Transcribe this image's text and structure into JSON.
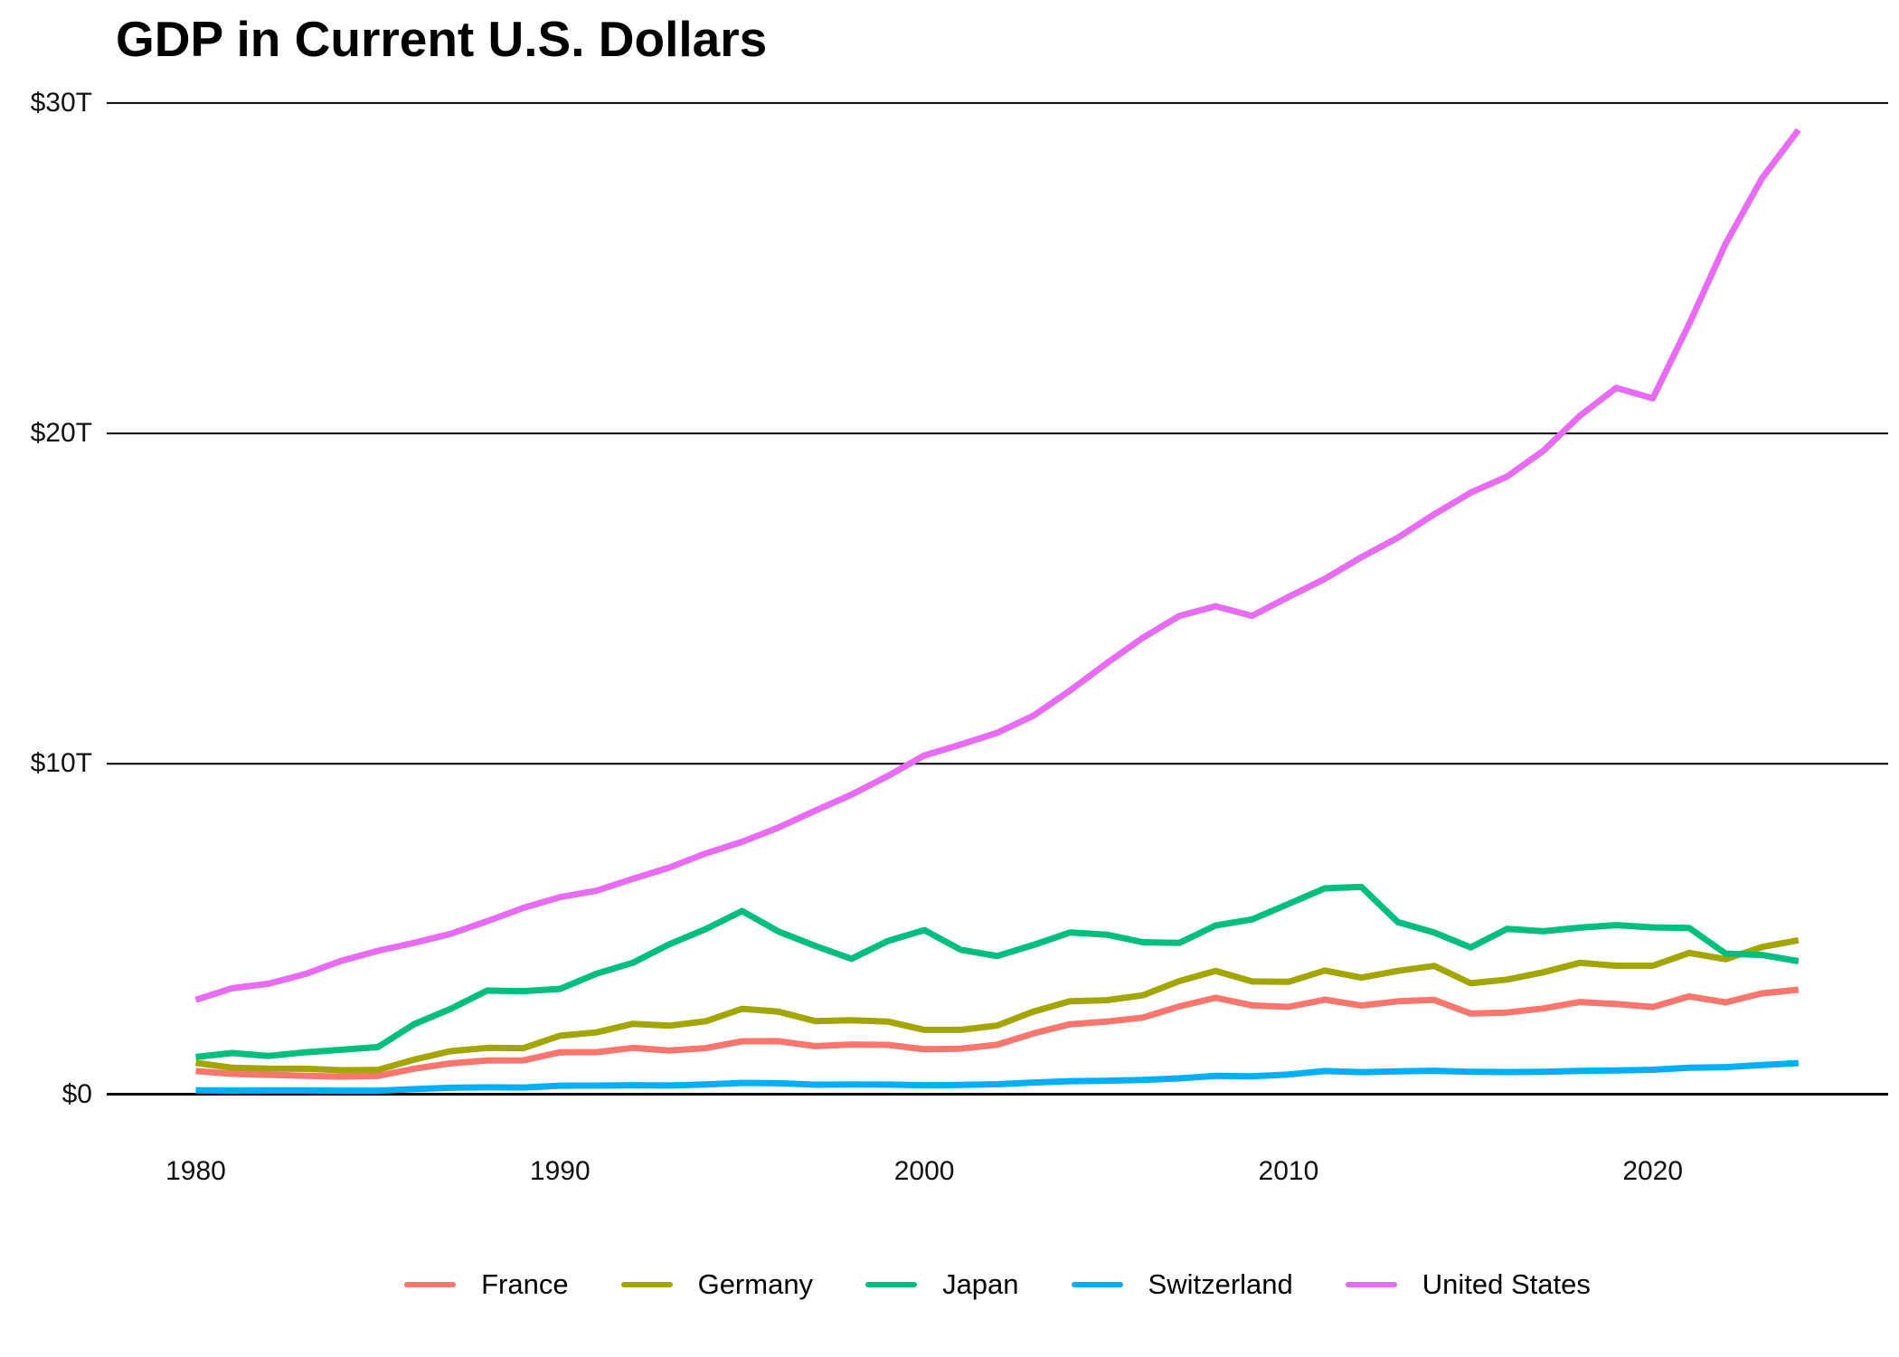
{
  "title": "GDP in Current U.S. Dollars",
  "chart_data": {
    "type": "line",
    "title": "GDP in Current U.S. Dollars",
    "xlabel": "",
    "ylabel": "",
    "units": "trillions of current U.S. dollars",
    "grid": "horizontal-only",
    "legend_position": "bottom-center",
    "xlim": [
      1980,
      2024
    ],
    "ylim": [
      0,
      30
    ],
    "x_ticks": [
      {
        "value": 1980,
        "label": "1980"
      },
      {
        "value": 1990,
        "label": "1990"
      },
      {
        "value": 2000,
        "label": "2000"
      },
      {
        "value": 2010,
        "label": "2010"
      },
      {
        "value": 2020,
        "label": "2020"
      }
    ],
    "y_ticks": [
      {
        "value": 0,
        "label": "$0"
      },
      {
        "value": 10,
        "label": "$10T"
      },
      {
        "value": 20,
        "label": "$20T"
      },
      {
        "value": 30,
        "label": "$30T"
      }
    ],
    "x": [
      1980,
      1981,
      1982,
      1983,
      1984,
      1985,
      1986,
      1987,
      1988,
      1989,
      1990,
      1991,
      1992,
      1993,
      1994,
      1995,
      1996,
      1997,
      1998,
      1999,
      2000,
      2001,
      2002,
      2003,
      2004,
      2005,
      2006,
      2007,
      2008,
      2009,
      2010,
      2011,
      2012,
      2013,
      2014,
      2015,
      2016,
      2017,
      2018,
      2019,
      2020,
      2021,
      2022,
      2023,
      2024
    ],
    "series": [
      {
        "name": "France",
        "color": "#F8766D",
        "values": [
          0.702,
          0.616,
          0.585,
          0.559,
          0.531,
          0.553,
          0.772,
          0.935,
          1.018,
          1.025,
          1.269,
          1.27,
          1.402,
          1.323,
          1.394,
          1.601,
          1.605,
          1.453,
          1.504,
          1.493,
          1.362,
          1.377,
          1.494,
          1.84,
          2.116,
          2.196,
          2.32,
          2.657,
          2.918,
          2.69,
          2.642,
          2.862,
          2.684,
          2.811,
          2.852,
          2.439,
          2.472,
          2.595,
          2.791,
          2.729,
          2.639,
          2.959,
          2.78,
          3.052,
          3.162
        ]
      },
      {
        "name": "Germany",
        "color": "#A3A500",
        "values": [
          0.947,
          0.799,
          0.771,
          0.77,
          0.726,
          0.736,
          1.05,
          1.304,
          1.402,
          1.393,
          1.772,
          1.869,
          2.131,
          2.072,
          2.206,
          2.585,
          2.498,
          2.213,
          2.24,
          2.2,
          1.948,
          1.946,
          2.079,
          2.501,
          2.815,
          2.846,
          2.992,
          3.422,
          3.73,
          3.411,
          3.4,
          3.744,
          3.527,
          3.733,
          3.884,
          3.358,
          3.469,
          3.691,
          3.975,
          3.889,
          3.887,
          4.278,
          4.085,
          4.456,
          4.66
        ]
      },
      {
        "name": "Japan",
        "color": "#00BF7D",
        "values": [
          1.129,
          1.245,
          1.157,
          1.269,
          1.345,
          1.427,
          2.121,
          2.584,
          3.134,
          3.118,
          3.186,
          3.648,
          3.98,
          4.538,
          4.998,
          5.546,
          4.924,
          4.492,
          4.099,
          4.636,
          4.968,
          4.374,
          4.182,
          4.519,
          4.893,
          4.831,
          4.601,
          4.579,
          5.107,
          5.289,
          5.759,
          6.233,
          6.272,
          5.212,
          4.897,
          4.444,
          5.004,
          4.931,
          5.041,
          5.118,
          5.048,
          5.034,
          4.256,
          4.213,
          4.026
        ]
      },
      {
        "name": "Switzerland",
        "color": "#00B0F6",
        "values": [
          0.118,
          0.11,
          0.111,
          0.111,
          0.106,
          0.108,
          0.153,
          0.194,
          0.209,
          0.202,
          0.258,
          0.261,
          0.27,
          0.264,
          0.292,
          0.342,
          0.331,
          0.288,
          0.296,
          0.29,
          0.272,
          0.282,
          0.301,
          0.353,
          0.394,
          0.408,
          0.43,
          0.48,
          0.554,
          0.542,
          0.598,
          0.7,
          0.668,
          0.689,
          0.71,
          0.68,
          0.67,
          0.68,
          0.706,
          0.721,
          0.739,
          0.801,
          0.818,
          0.885,
          0.942
        ]
      },
      {
        "name": "United States",
        "color": "#E76BF3",
        "values": [
          2.857,
          3.207,
          3.344,
          3.634,
          4.038,
          4.339,
          4.58,
          4.855,
          5.236,
          5.642,
          5.963,
          6.158,
          6.52,
          6.859,
          7.287,
          7.64,
          8.073,
          8.578,
          9.063,
          9.631,
          10.251,
          10.582,
          10.936,
          11.458,
          12.214,
          13.037,
          13.815,
          14.474,
          14.77,
          14.478,
          15.049,
          15.6,
          16.254,
          16.843,
          17.551,
          18.206,
          18.695,
          19.477,
          20.533,
          21.381,
          21.06,
          23.315,
          25.744,
          27.721,
          29.185
        ]
      }
    ]
  }
}
